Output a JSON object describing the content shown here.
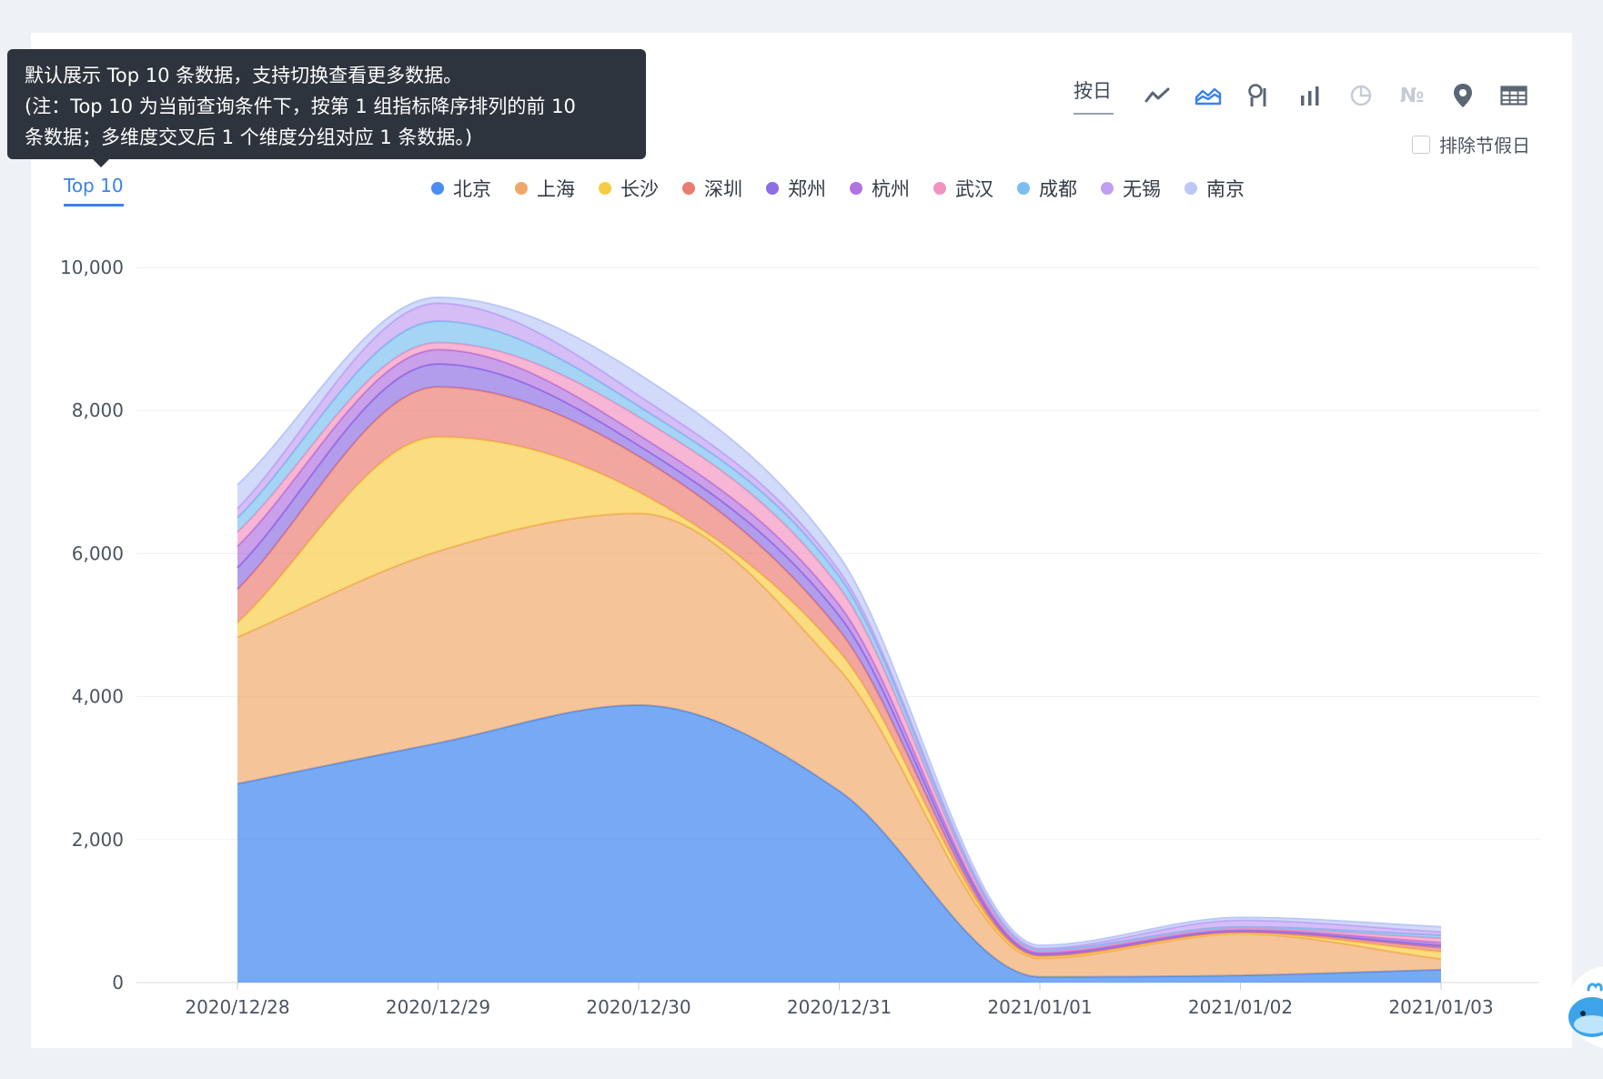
{
  "tooltip": {
    "line1": "默认展示 Top 10 条数据，支持切换查看更多数据。",
    "line2": "(注：Top 10 为当前查询条件下，按第 1 组指标降序排列的前 10",
    "line3": "条数据；多维度交叉后 1 个维度分组对应 1 条数据。)"
  },
  "toolbar": {
    "granularity": "按日",
    "icons": [
      "line-chart-icon",
      "area-chart-icon",
      "ring-progress-icon",
      "bar-chart-icon",
      "pie-chart-icon",
      "number-icon",
      "map-pin-icon",
      "table-icon"
    ],
    "active_icon": "area-chart-icon",
    "number_label": "№",
    "exclude_holidays_label": "排除节假日",
    "exclude_holidays_checked": false
  },
  "tab": {
    "label": "Top 10"
  },
  "chart_data": {
    "type": "area",
    "stacked": true,
    "smooth": true,
    "x": [
      "2020/12/28",
      "2020/12/29",
      "2020/12/30",
      "2020/12/31",
      "2021/01/01",
      "2021/01/02",
      "2021/01/03"
    ],
    "ylim": [
      0,
      10000
    ],
    "yticks": [
      0,
      2000,
      4000,
      6000,
      8000,
      10000
    ],
    "ytick_labels": [
      "0",
      "2,000",
      "4,000",
      "6,000",
      "8,000",
      "10,000"
    ],
    "grid": true,
    "legend_position": "top-center",
    "series": [
      {
        "name": "北京",
        "color": "#4a8cf2",
        "values": [
          2780,
          3350,
          3880,
          2680,
          80,
          100,
          180
        ]
      },
      {
        "name": "上海",
        "color": "#f0a868",
        "values": [
          2050,
          2680,
          2680,
          1700,
          260,
          580,
          150
        ]
      },
      {
        "name": "长沙",
        "color": "#f7cc45",
        "values": [
          200,
          1600,
          300,
          250,
          20,
          10,
          100
        ]
      },
      {
        "name": "深圳",
        "color": "#ea7c72",
        "values": [
          470,
          700,
          500,
          300,
          20,
          20,
          60
        ]
      },
      {
        "name": "郑州",
        "color": "#8d6ee5",
        "values": [
          300,
          320,
          150,
          200,
          20,
          10,
          30
        ]
      },
      {
        "name": "杭州",
        "color": "#b173e0",
        "values": [
          300,
          200,
          150,
          150,
          20,
          20,
          40
        ]
      },
      {
        "name": "武汉",
        "color": "#f193c0",
        "values": [
          200,
          100,
          250,
          250,
          20,
          20,
          60
        ]
      },
      {
        "name": "成都",
        "color": "#7bbff0",
        "values": [
          200,
          300,
          150,
          150,
          20,
          20,
          40
        ]
      },
      {
        "name": "无锡",
        "color": "#c19df2",
        "values": [
          130,
          250,
          150,
          80,
          20,
          90,
          50
        ]
      },
      {
        "name": "南京",
        "color": "#bcc8f7",
        "values": [
          330,
          80,
          300,
          200,
          40,
          40,
          70
        ]
      }
    ]
  }
}
